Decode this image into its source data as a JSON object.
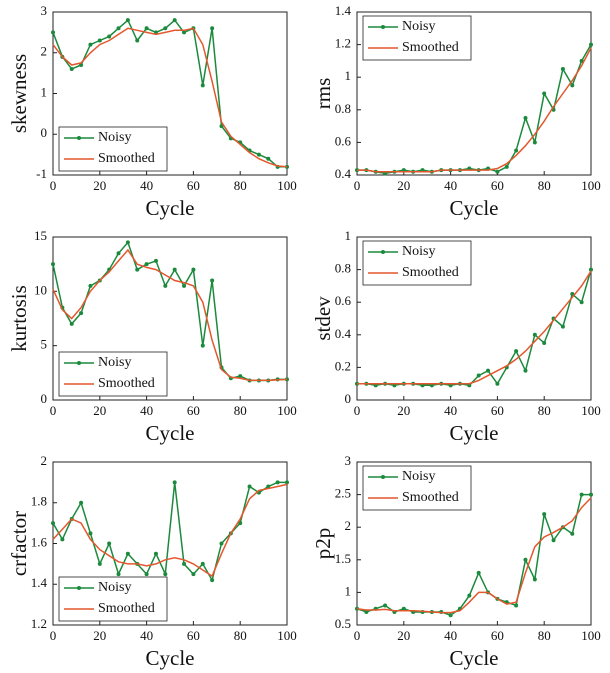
{
  "chart_data": [
    {
      "type": "line",
      "xlabel": "Cycle",
      "ylabel": "skewness",
      "legend": "lower left",
      "x": [
        0,
        4,
        8,
        12,
        16,
        20,
        24,
        28,
        32,
        36,
        40,
        44,
        48,
        52,
        56,
        60,
        64,
        68,
        72,
        76,
        80,
        84,
        88,
        92,
        96,
        100
      ],
      "xlim": [
        0,
        100
      ],
      "xticks": [
        0,
        20,
        40,
        60,
        80,
        100
      ],
      "ylim": [
        -1,
        3
      ],
      "yticks": [
        -1,
        0,
        1,
        2,
        3
      ],
      "series": [
        {
          "name": "Noisy",
          "color": "#1b8a3c",
          "marker": true,
          "values": [
            2.5,
            1.9,
            1.6,
            1.7,
            2.2,
            2.3,
            2.4,
            2.6,
            2.8,
            2.3,
            2.6,
            2.5,
            2.6,
            2.8,
            2.5,
            2.6,
            1.2,
            2.6,
            0.2,
            -0.1,
            -0.2,
            -0.4,
            -0.5,
            -0.6,
            -0.8,
            -0.8
          ]
        },
        {
          "name": "Smoothed",
          "color": "#e4572e",
          "marker": false,
          "values": [
            2.2,
            1.9,
            1.7,
            1.75,
            2.0,
            2.2,
            2.3,
            2.45,
            2.6,
            2.55,
            2.5,
            2.45,
            2.5,
            2.55,
            2.55,
            2.6,
            2.2,
            1.3,
            0.3,
            -0.05,
            -0.25,
            -0.45,
            -0.6,
            -0.7,
            -0.78,
            -0.8
          ]
        }
      ]
    },
    {
      "type": "line",
      "xlabel": "Cycle",
      "ylabel": "rms",
      "legend": "upper left",
      "x": [
        0,
        4,
        8,
        12,
        16,
        20,
        24,
        28,
        32,
        36,
        40,
        44,
        48,
        52,
        56,
        60,
        64,
        68,
        72,
        76,
        80,
        84,
        88,
        92,
        96,
        100
      ],
      "xlim": [
        0,
        100
      ],
      "xticks": [
        0,
        20,
        40,
        60,
        80,
        100
      ],
      "ylim": [
        0.4,
        1.4
      ],
      "yticks": [
        0.4,
        0.6,
        0.8,
        1,
        1.2,
        1.4
      ],
      "series": [
        {
          "name": "Noisy",
          "color": "#1b8a3c",
          "marker": true,
          "values": [
            0.43,
            0.43,
            0.42,
            0.41,
            0.42,
            0.43,
            0.42,
            0.43,
            0.42,
            0.43,
            0.43,
            0.43,
            0.44,
            0.43,
            0.44,
            0.42,
            0.45,
            0.55,
            0.75,
            0.6,
            0.9,
            0.8,
            1.05,
            0.95,
            1.1,
            1.2
          ]
        },
        {
          "name": "Smoothed",
          "color": "#e4572e",
          "marker": false,
          "values": [
            0.43,
            0.43,
            0.42,
            0.42,
            0.42,
            0.42,
            0.42,
            0.42,
            0.42,
            0.43,
            0.43,
            0.43,
            0.43,
            0.43,
            0.43,
            0.44,
            0.47,
            0.52,
            0.58,
            0.65,
            0.73,
            0.82,
            0.9,
            0.98,
            1.07,
            1.18
          ]
        }
      ]
    },
    {
      "type": "line",
      "xlabel": "Cycle",
      "ylabel": "kurtosis",
      "legend": "lower left",
      "x": [
        0,
        4,
        8,
        12,
        16,
        20,
        24,
        28,
        32,
        36,
        40,
        44,
        48,
        52,
        56,
        60,
        64,
        68,
        72,
        76,
        80,
        84,
        88,
        92,
        96,
        100
      ],
      "xlim": [
        0,
        100
      ],
      "xticks": [
        0,
        20,
        40,
        60,
        80,
        100
      ],
      "ylim": [
        0,
        15
      ],
      "yticks": [
        0,
        5,
        10,
        15
      ],
      "series": [
        {
          "name": "Noisy",
          "color": "#1b8a3c",
          "marker": true,
          "values": [
            12.5,
            8.5,
            7,
            8,
            10.5,
            11,
            12,
            13.5,
            14.5,
            12,
            12.5,
            12.8,
            10.5,
            12,
            10.5,
            12,
            5,
            11,
            3,
            2,
            2.2,
            1.8,
            1.8,
            1.8,
            1.9,
            1.9
          ]
        },
        {
          "name": "Smoothed",
          "color": "#e4572e",
          "marker": false,
          "values": [
            10.2,
            8.3,
            7.5,
            8.5,
            10,
            11,
            11.8,
            12.8,
            13.8,
            12.5,
            12.2,
            12,
            11.5,
            11,
            10.8,
            10.5,
            9,
            5.5,
            2.8,
            2.1,
            2,
            1.8,
            1.8,
            1.8,
            1.85,
            1.9
          ]
        }
      ]
    },
    {
      "type": "line",
      "xlabel": "Cycle",
      "ylabel": "stdev",
      "legend": "upper left",
      "x": [
        0,
        4,
        8,
        12,
        16,
        20,
        24,
        28,
        32,
        36,
        40,
        44,
        48,
        52,
        56,
        60,
        64,
        68,
        72,
        76,
        80,
        84,
        88,
        92,
        96,
        100
      ],
      "xlim": [
        0,
        100
      ],
      "xticks": [
        0,
        20,
        40,
        60,
        80,
        100
      ],
      "ylim": [
        0,
        1
      ],
      "yticks": [
        0,
        0.2,
        0.4,
        0.6,
        0.8,
        1
      ],
      "series": [
        {
          "name": "Noisy",
          "color": "#1b8a3c",
          "marker": true,
          "values": [
            0.1,
            0.1,
            0.09,
            0.1,
            0.09,
            0.1,
            0.1,
            0.09,
            0.09,
            0.1,
            0.09,
            0.1,
            0.09,
            0.15,
            0.18,
            0.1,
            0.2,
            0.3,
            0.18,
            0.4,
            0.35,
            0.5,
            0.45,
            0.65,
            0.6,
            0.8
          ]
        },
        {
          "name": "Smoothed",
          "color": "#e4572e",
          "marker": false,
          "values": [
            0.1,
            0.1,
            0.1,
            0.1,
            0.1,
            0.1,
            0.1,
            0.1,
            0.1,
            0.1,
            0.1,
            0.1,
            0.1,
            0.12,
            0.15,
            0.18,
            0.21,
            0.25,
            0.3,
            0.36,
            0.42,
            0.49,
            0.56,
            0.63,
            0.7,
            0.79
          ]
        }
      ]
    },
    {
      "type": "line",
      "xlabel": "Cycle",
      "ylabel": "crfactor",
      "legend": "lower left",
      "x": [
        0,
        4,
        8,
        12,
        16,
        20,
        24,
        28,
        32,
        36,
        40,
        44,
        48,
        52,
        56,
        60,
        64,
        68,
        72,
        76,
        80,
        84,
        88,
        92,
        96,
        100
      ],
      "xlim": [
        0,
        100
      ],
      "xticks": [
        0,
        20,
        40,
        60,
        80,
        100
      ],
      "ylim": [
        1.2,
        2
      ],
      "yticks": [
        1.2,
        1.4,
        1.6,
        1.8,
        2
      ],
      "series": [
        {
          "name": "Noisy",
          "color": "#1b8a3c",
          "marker": true,
          "values": [
            1.7,
            1.62,
            1.72,
            1.8,
            1.65,
            1.5,
            1.6,
            1.45,
            1.55,
            1.5,
            1.45,
            1.55,
            1.45,
            1.9,
            1.5,
            1.45,
            1.5,
            1.42,
            1.6,
            1.65,
            1.7,
            1.88,
            1.85,
            1.88,
            1.9,
            1.9
          ]
        },
        {
          "name": "Smoothed",
          "color": "#e4572e",
          "marker": false,
          "values": [
            1.62,
            1.67,
            1.72,
            1.7,
            1.62,
            1.57,
            1.54,
            1.51,
            1.5,
            1.5,
            1.49,
            1.5,
            1.52,
            1.53,
            1.52,
            1.5,
            1.47,
            1.44,
            1.55,
            1.65,
            1.72,
            1.82,
            1.86,
            1.87,
            1.88,
            1.89
          ]
        }
      ]
    },
    {
      "type": "line",
      "xlabel": "Cycle",
      "ylabel": "p2p",
      "legend": "upper left",
      "x": [
        0,
        4,
        8,
        12,
        16,
        20,
        24,
        28,
        32,
        36,
        40,
        44,
        48,
        52,
        56,
        60,
        64,
        68,
        72,
        76,
        80,
        84,
        88,
        92,
        96,
        100
      ],
      "xlim": [
        0,
        100
      ],
      "xticks": [
        0,
        20,
        40,
        60,
        80,
        100
      ],
      "ylim": [
        0.5,
        3
      ],
      "yticks": [
        0.5,
        1,
        1.5,
        2,
        2.5,
        3
      ],
      "series": [
        {
          "name": "Noisy",
          "color": "#1b8a3c",
          "marker": true,
          "values": [
            0.75,
            0.7,
            0.75,
            0.8,
            0.7,
            0.75,
            0.7,
            0.7,
            0.7,
            0.7,
            0.65,
            0.75,
            0.95,
            1.3,
            1.0,
            0.9,
            0.85,
            0.8,
            1.5,
            1.2,
            2.2,
            1.8,
            2.0,
            1.9,
            2.5,
            2.5
          ]
        },
        {
          "name": "Smoothed",
          "color": "#e4572e",
          "marker": false,
          "values": [
            0.75,
            0.73,
            0.73,
            0.74,
            0.72,
            0.72,
            0.72,
            0.71,
            0.7,
            0.69,
            0.69,
            0.72,
            0.85,
            1.0,
            1.0,
            0.9,
            0.82,
            0.85,
            1.3,
            1.7,
            1.85,
            1.92,
            2.0,
            2.1,
            2.3,
            2.45
          ]
        }
      ]
    }
  ]
}
